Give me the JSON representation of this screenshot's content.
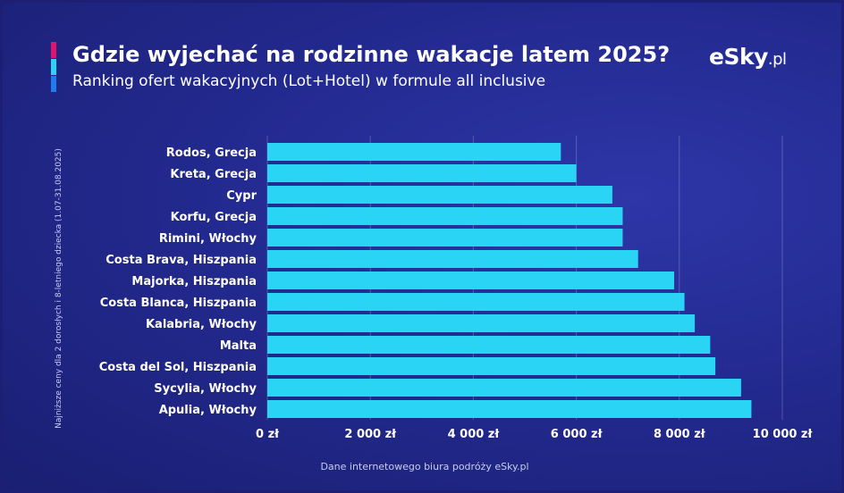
{
  "header": {
    "title": "Gdzie wyjechać na rodzinne wakacje latem 2025?",
    "subtitle": "Ranking ofert wakacyjnych (Lot+Hotel) w formule all inclusive",
    "logo_main": "eSky",
    "logo_suffix": ".pl"
  },
  "side_note": "Najniższe ceny dla 2 dorosłych i 8-letniego dziecka (1.07-31.08.2025)",
  "source": "Dane internetowego biura podróży eSky.pl",
  "colors": {
    "bar": "#2ad4f5",
    "accent_1": "#e0136f",
    "accent_2": "#2ad4f5",
    "accent_3": "#1e7cf0",
    "background": "#232a90"
  },
  "chart_data": {
    "type": "bar",
    "orientation": "horizontal",
    "categories": [
      "Rodos, Grecja",
      "Kreta, Grecja",
      "Cypr",
      "Korfu, Grecja",
      "Rimini, Włochy",
      "Costa Brava, Hiszpania",
      "Majorka, Hiszpania",
      "Costa Blanca, Hiszpania",
      "Kalabria, Włochy",
      "Malta",
      "Costa del Sol, Hiszpania",
      "Sycylia, Włochy",
      "Apulia, Włochy"
    ],
    "values": [
      5700,
      6000,
      6700,
      6900,
      6900,
      7200,
      7900,
      8100,
      8300,
      8600,
      8700,
      9200,
      9400
    ],
    "title": "Gdzie wyjechać na rodzinne wakacje latem 2025?",
    "subtitle": "Ranking ofert wakacyjnych (Lot+Hotel) w formule all inclusive",
    "xlabel": "",
    "ylabel": "Najniższe ceny dla 2 dorosłych i 8-letniego dziecka (1.07-31.08.2025)",
    "xlim": [
      0,
      10000
    ],
    "ticks": [
      0,
      2000,
      4000,
      6000,
      8000,
      10000
    ],
    "tick_labels": [
      "0 zł",
      "2 000 zł",
      "4 000 zł",
      "6 000 zł",
      "8 000 zł",
      "10 000 zł"
    ],
    "grid": true,
    "legend": "none"
  }
}
